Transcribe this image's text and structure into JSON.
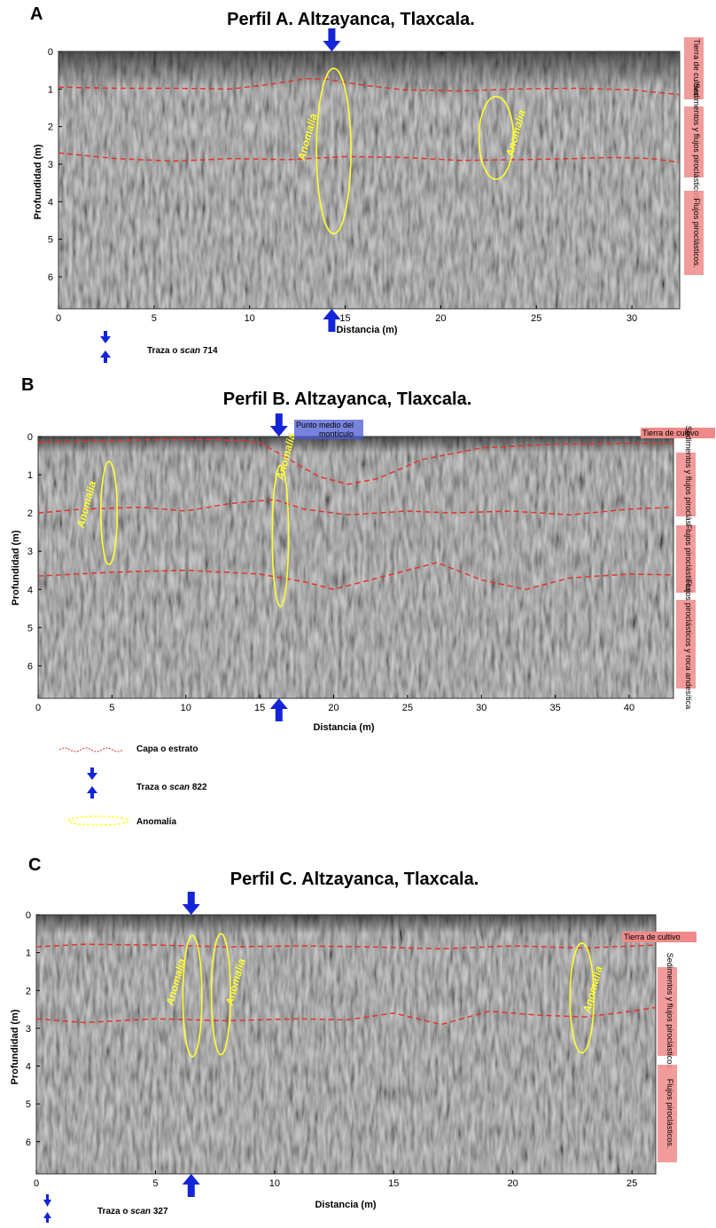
{
  "panels": [
    {
      "id": "A",
      "label": "A",
      "title": "Perfil A. Altzayanca, Tlaxcala.",
      "xlabel": "Distancia (m)",
      "ylabel": "Profundidad (m)",
      "xmax": 32.5,
      "xticks": [
        0,
        5,
        10,
        15,
        20,
        25,
        30
      ],
      "ymax": 6.85,
      "yticks": [
        0,
        1,
        2,
        3,
        4,
        5,
        6
      ],
      "arrow_x": 14.3,
      "layers": [
        {
          "points": [
            [
              0,
              0.95
            ],
            [
              3,
              0.98
            ],
            [
              6,
              0.98
            ],
            [
              9,
              1.0
            ],
            [
              11,
              0.88
            ],
            [
              13,
              0.72
            ],
            [
              14,
              0.74
            ],
            [
              16,
              0.9
            ],
            [
              18,
              1.02
            ],
            [
              21,
              1.05
            ],
            [
              24,
              1.0
            ],
            [
              27,
              0.98
            ],
            [
              30,
              1.02
            ],
            [
              32.5,
              1.15
            ]
          ]
        },
        {
          "points": [
            [
              0,
              2.7
            ],
            [
              3,
              2.85
            ],
            [
              6,
              2.92
            ],
            [
              9,
              2.85
            ],
            [
              12,
              2.88
            ],
            [
              15,
              2.8
            ],
            [
              18,
              2.82
            ],
            [
              21,
              2.9
            ],
            [
              24,
              2.88
            ],
            [
              27,
              2.85
            ],
            [
              29,
              2.82
            ],
            [
              31,
              2.85
            ],
            [
              32.5,
              2.95
            ]
          ]
        }
      ],
      "anomalies": [
        {
          "text": "Anomalia",
          "cx": 14.4,
          "cy": 2.65,
          "rx": 0.9,
          "ry": 2.2,
          "tx": 13.2,
          "ty": 2.3
        },
        {
          "text": "Anomalia",
          "cx": 22.9,
          "cy": 2.3,
          "rx": 0.9,
          "ry": 1.1,
          "tx": 24.1,
          "ty": 2.2
        }
      ],
      "strata": [
        "Tierra de cultivo.",
        "Sedimentos y flujos piroclásticos.",
        "Flujos piroclásticos."
      ],
      "top_note": ""
    },
    {
      "id": "B",
      "label": "B",
      "title": "Perfil B. Altzayanca, Tlaxcala.",
      "xlabel": "Distancia (m)",
      "ylabel": "Profundidad (m)",
      "xmax": 43,
      "xticks": [
        0,
        5,
        10,
        15,
        20,
        25,
        30,
        35,
        40
      ],
      "ymax": 6.85,
      "yticks": [
        0,
        1,
        2,
        3,
        4,
        5,
        6
      ],
      "arrow_x": 16.3,
      "layers": [
        {
          "points": [
            [
              0,
              0.15
            ],
            [
              4,
              0.12
            ],
            [
              8,
              0.08
            ],
            [
              12,
              0.08
            ],
            [
              15,
              0.15
            ],
            [
              17,
              0.6
            ],
            [
              19,
              1.05
            ],
            [
              21,
              1.25
            ],
            [
              23,
              1.1
            ],
            [
              26,
              0.6
            ],
            [
              30,
              0.3
            ],
            [
              35,
              0.2
            ],
            [
              40,
              0.18
            ],
            [
              43,
              0.18
            ]
          ]
        },
        {
          "points": [
            [
              0,
              2.0
            ],
            [
              3,
              1.9
            ],
            [
              7,
              1.85
            ],
            [
              10,
              1.95
            ],
            [
              13,
              1.75
            ],
            [
              16,
              1.65
            ],
            [
              18,
              1.9
            ],
            [
              21,
              2.05
            ],
            [
              25,
              1.95
            ],
            [
              28,
              2.0
            ],
            [
              32,
              1.95
            ],
            [
              36,
              2.05
            ],
            [
              40,
              1.9
            ],
            [
              43,
              1.85
            ]
          ]
        },
        {
          "points": [
            [
              0,
              3.65
            ],
            [
              5,
              3.55
            ],
            [
              10,
              3.5
            ],
            [
              15,
              3.6
            ],
            [
              18,
              3.8
            ],
            [
              20,
              4.0
            ],
            [
              23,
              3.7
            ],
            [
              27,
              3.3
            ],
            [
              30,
              3.75
            ],
            [
              33,
              4.0
            ],
            [
              36,
              3.7
            ],
            [
              40,
              3.6
            ],
            [
              43,
              3.62
            ]
          ]
        }
      ],
      "anomalies": [
        {
          "text": "Anomalia",
          "cx": 4.8,
          "cy": 2.0,
          "rx": 0.55,
          "ry": 1.35,
          "tx": 3.5,
          "ty": 1.8
        },
        {
          "text": "Anomalia",
          "cx": 16.4,
          "cy": 2.6,
          "rx": 0.55,
          "ry": 1.85,
          "tx": 17.0,
          "ty": 0.55
        }
      ],
      "strata": [
        "Tierra de cultivo",
        "Sedimentos y flujos piroclásticos.",
        "Flujos piroclásticos.",
        "Flujos piroclásticos y roca andesítica"
      ],
      "top_note": "Punto medio del montículo"
    },
    {
      "id": "C",
      "label": "C",
      "title": "Perfil C. Altzayanca, Tlaxcala.",
      "xlabel": "Distancia (m)",
      "ylabel": "Profundidad (m)",
      "xmax": 26,
      "xticks": [
        0,
        5,
        10,
        15,
        20,
        25
      ],
      "ymax": 6.85,
      "yticks": [
        0,
        1,
        2,
        3,
        4,
        5,
        6
      ],
      "arrow_x": 6.5,
      "layers": [
        {
          "points": [
            [
              0,
              0.85
            ],
            [
              2,
              0.78
            ],
            [
              5,
              0.8
            ],
            [
              8,
              0.85
            ],
            [
              11,
              0.82
            ],
            [
              14,
              0.85
            ],
            [
              17,
              0.9
            ],
            [
              20,
              0.82
            ],
            [
              23,
              0.88
            ],
            [
              26,
              0.8
            ]
          ]
        },
        {
          "points": [
            [
              0,
              2.75
            ],
            [
              2,
              2.85
            ],
            [
              5,
              2.75
            ],
            [
              8,
              2.8
            ],
            [
              11,
              2.75
            ],
            [
              13,
              2.78
            ],
            [
              15,
              2.6
            ],
            [
              17,
              2.9
            ],
            [
              19,
              2.55
            ],
            [
              21,
              2.65
            ],
            [
              23,
              2.7
            ],
            [
              25,
              2.55
            ],
            [
              26,
              2.45
            ]
          ]
        }
      ],
      "anomalies": [
        {
          "text": "Anomalia",
          "cx": 6.55,
          "cy": 2.15,
          "rx": 0.4,
          "ry": 1.6,
          "tx": 6.0,
          "ty": 1.8
        },
        {
          "text": "Anomalia",
          "cx": 7.75,
          "cy": 2.1,
          "rx": 0.4,
          "ry": 1.6,
          "tx": 8.5,
          "ty": 1.8
        },
        {
          "text": "Anomalia",
          "cx": 22.9,
          "cy": 2.2,
          "rx": 0.5,
          "ry": 1.45,
          "tx": 23.5,
          "ty": 2.0
        }
      ],
      "strata": [
        "Tierra de cultivo",
        "Sedimentos y flujos piroclásticos.",
        "Flujos piroclásticos."
      ],
      "top_note": ""
    }
  ],
  "legend_a": {
    "traza_prefix": "Traza o ",
    "traza_italic": "scan",
    "traza_num": " 714"
  },
  "legend_b": {
    "capa": "Capa o estrato",
    "traza_prefix": "Traza o ",
    "traza_italic": "scan",
    "traza_num": " 822",
    "anomalia": "Anomalía"
  },
  "legend_c": {
    "traza_prefix": "Traza o ",
    "traza_italic": "scan",
    "traza_num": " 327"
  },
  "colors": {
    "layer": "#e8312a",
    "anomaly": "#ffff33",
    "arrow": "#1424d8",
    "strata_bg": "#f08a8a"
  }
}
